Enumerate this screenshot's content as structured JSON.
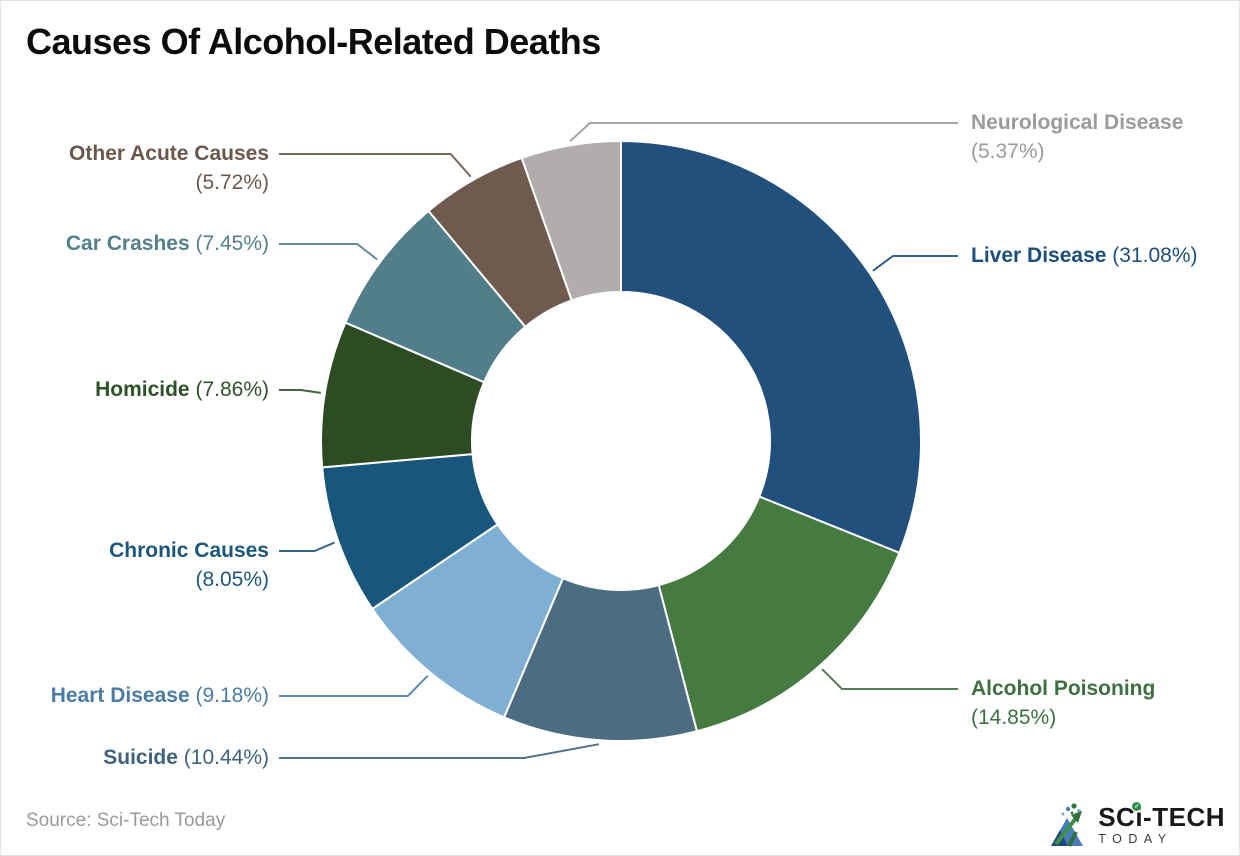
{
  "header": {
    "title": "Causes Of Alcohol-Related Deaths"
  },
  "chart_data": {
    "type": "pie",
    "subtype": "donut",
    "title": "Causes Of Alcohol-Related Deaths",
    "unit": "%",
    "total": 100,
    "start_angle_deg": 0,
    "direction": "clockwise",
    "inner_radius_ratio": 0.5,
    "legend_position": "callout-labels",
    "segments": [
      {
        "name": "Liver Disease",
        "value": 31.08,
        "color": "#21507C",
        "label_color": "#1D4E7D"
      },
      {
        "name": "Alcohol Poisoning",
        "value": 14.85,
        "color": "#457A40",
        "label_color": "#3E7040"
      },
      {
        "name": "Suicide",
        "value": 10.44,
        "color": "#4C6C81",
        "label_color": "#3F637C"
      },
      {
        "name": "Heart Disease",
        "value": 9.18,
        "color": "#7FAFD3",
        "label_color": "#4B7CA5"
      },
      {
        "name": "Chronic Causes",
        "value": 8.05,
        "color": "#19567B",
        "label_color": "#1C567B"
      },
      {
        "name": "Homicide",
        "value": 7.86,
        "color": "#2E4C24",
        "label_color": "#2D5227"
      },
      {
        "name": "Car Crashes",
        "value": 7.45,
        "color": "#517E8A",
        "label_color": "#54808D"
      },
      {
        "name": "Other Acute Causes",
        "value": 5.72,
        "color": "#6F5A4E",
        "label_color": "#6B584B"
      },
      {
        "name": "Neurological Disease",
        "value": 5.37,
        "color": "#B1ADAD",
        "label_color": "#9B9B9B"
      }
    ]
  },
  "footer": {
    "source": "Source: Sci-Tech Today"
  },
  "logo": {
    "line1": "SCi-TECH",
    "line2": "TODAY"
  }
}
